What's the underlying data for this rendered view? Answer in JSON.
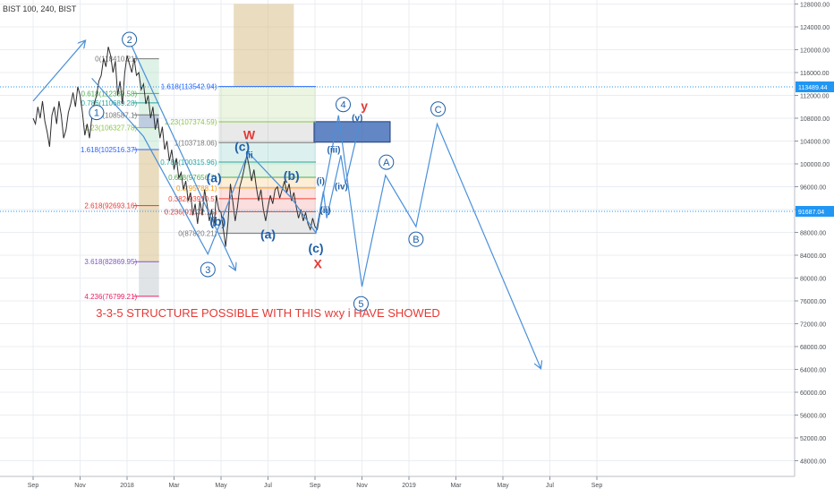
{
  "chart_data": {
    "type": "line",
    "title": "BIST 100, 240, BIST",
    "xlabel": "",
    "ylabel": "",
    "ylim": [
      45000,
      128000
    ],
    "grid": true,
    "x_ticks": [
      "Sep",
      "Nov",
      "2018",
      "Mar",
      "May",
      "Jul",
      "Sep",
      "Nov",
      "2019",
      "Mar",
      "May",
      "Jul",
      "Sep"
    ],
    "y_ticks": [
      "128000.00",
      "124000.00",
      "120000.00",
      "116000.00",
      "112000.00",
      "108000.00",
      "104000.00",
      "100000.00",
      "96000.00",
      "92000.00",
      "88000.00",
      "84000.00",
      "80000.00",
      "76000.00",
      "72000.00",
      "68000.00",
      "64000.00",
      "60000.00",
      "56000.00",
      "52000.00",
      "48000.00"
    ],
    "price_badges": [
      {
        "label": "113489.44",
        "value": 113489.44,
        "color": "#2196f3"
      },
      {
        "label": "91687.04",
        "value": 91687.04,
        "color": "#2196f3"
      }
    ],
    "series": [
      {
        "name": "",
        "color": "#2e2e2e",
        "points": [
          [
            0,
            108000
          ],
          [
            0.05,
            107000
          ],
          [
            0.1,
            110000
          ],
          [
            0.15,
            108000
          ],
          [
            0.2,
            111000
          ],
          [
            0.25,
            107500
          ],
          [
            0.3,
            105500
          ],
          [
            0.35,
            103000
          ],
          [
            0.4,
            108500
          ],
          [
            0.45,
            110000
          ],
          [
            0.5,
            107000
          ],
          [
            0.55,
            111000
          ],
          [
            0.6,
            108500
          ],
          [
            0.65,
            104500
          ],
          [
            0.7,
            106000
          ],
          [
            0.75,
            109000
          ],
          [
            0.8,
            110500
          ],
          [
            0.85,
            112500
          ],
          [
            0.9,
            110000
          ],
          [
            0.95,
            113500
          ],
          [
            1.0,
            112000
          ],
          [
            1.05,
            109000
          ],
          [
            1.1,
            105000
          ],
          [
            1.15,
            107000
          ],
          [
            1.2,
            104500
          ],
          [
            1.25,
            108000
          ],
          [
            1.3,
            110500
          ],
          [
            1.35,
            112000
          ],
          [
            1.4,
            114500
          ],
          [
            1.45,
            115500
          ],
          [
            1.5,
            118500
          ],
          [
            1.55,
            117000
          ],
          [
            1.6,
            120500
          ],
          [
            1.65,
            119000
          ],
          [
            1.7,
            116000
          ],
          [
            1.75,
            118000
          ],
          [
            1.8,
            112000
          ],
          [
            1.85,
            114500
          ],
          [
            1.9,
            110500
          ],
          [
            1.95,
            116000
          ],
          [
            2.0,
            119000
          ],
          [
            2.05,
            117500
          ],
          [
            2.1,
            116000
          ],
          [
            2.15,
            118500
          ],
          [
            2.2,
            115500
          ],
          [
            2.25,
            116000
          ],
          [
            2.3,
            113000
          ],
          [
            2.35,
            114000
          ],
          [
            2.4,
            110500
          ],
          [
            2.45,
            112000
          ],
          [
            2.5,
            108000
          ],
          [
            2.55,
            110000
          ],
          [
            2.6,
            106000
          ],
          [
            2.65,
            108000
          ],
          [
            2.7,
            104500
          ],
          [
            2.75,
            106500
          ],
          [
            2.8,
            102500
          ],
          [
            2.85,
            104000
          ],
          [
            2.9,
            100500
          ],
          [
            2.95,
            102500
          ],
          [
            3.0,
            99000
          ],
          [
            3.05,
            101000
          ],
          [
            3.1,
            97500
          ],
          [
            3.15,
            98500
          ],
          [
            3.2,
            95500
          ],
          [
            3.25,
            97000
          ],
          [
            3.3,
            93500
          ],
          [
            3.35,
            95000
          ],
          [
            3.4,
            91000
          ],
          [
            3.45,
            93000
          ],
          [
            3.5,
            89500
          ],
          [
            3.55,
            93500
          ],
          [
            3.6,
            91000
          ],
          [
            3.65,
            95500
          ],
          [
            3.7,
            93000
          ],
          [
            3.75,
            90000
          ],
          [
            3.8,
            92000
          ],
          [
            3.85,
            89000
          ],
          [
            3.9,
            94500
          ],
          [
            3.95,
            92000
          ],
          [
            4.0,
            91500
          ],
          [
            4.05,
            88500
          ],
          [
            4.1,
            85500
          ],
          [
            4.15,
            90000
          ],
          [
            4.2,
            96500
          ],
          [
            4.25,
            93500
          ],
          [
            4.3,
            90000
          ],
          [
            4.35,
            92500
          ],
          [
            4.4,
            96000
          ],
          [
            4.45,
            97500
          ],
          [
            4.5,
            99500
          ],
          [
            4.55,
            101500
          ],
          [
            4.6,
            99500
          ],
          [
            4.65,
            97000
          ],
          [
            4.7,
            99000
          ],
          [
            4.75,
            96000
          ],
          [
            4.8,
            93500
          ],
          [
            4.85,
            95500
          ],
          [
            4.9,
            92000
          ],
          [
            4.95,
            90000
          ],
          [
            5.0,
            92500
          ],
          [
            5.05,
            94500
          ],
          [
            5.1,
            93000
          ],
          [
            5.15,
            95500
          ],
          [
            5.2,
            96000
          ],
          [
            5.25,
            94000
          ],
          [
            5.3,
            95500
          ],
          [
            5.35,
            97000
          ],
          [
            5.4,
            95000
          ],
          [
            5.45,
            96500
          ],
          [
            5.5,
            93500
          ],
          [
            5.55,
            95000
          ],
          [
            5.6,
            92500
          ],
          [
            5.65,
            90500
          ],
          [
            5.7,
            92000
          ],
          [
            5.75,
            90000
          ],
          [
            5.8,
            91500
          ],
          [
            5.85,
            89500
          ],
          [
            5.9,
            88500
          ],
          [
            5.95,
            90500
          ],
          [
            6.0,
            89000
          ],
          [
            6.05,
            88500
          ],
          [
            6.1,
            91000
          ],
          [
            6.15,
            92500
          ]
        ]
      }
    ],
    "wave_paths": [
      {
        "name": "wave-main-path",
        "points": [
          [
            1.25,
            115000
          ],
          [
            2.35,
            104800
          ],
          [
            3.72,
            84200
          ],
          [
            4.58,
            102000
          ],
          [
            5.5,
            94000
          ],
          [
            6.02,
            87900
          ],
          [
            6.5,
            108500
          ],
          [
            7.0,
            78500
          ],
          [
            7.5,
            98000
          ],
          [
            8.15,
            89000
          ],
          [
            8.6,
            107000
          ],
          [
            10.8,
            64300
          ]
        ]
      },
      {
        "name": "wave-sub-path",
        "points": [
          [
            6.02,
            87900
          ],
          [
            6.18,
            95200
          ],
          [
            6.25,
            90500
          ],
          [
            6.55,
            101500
          ],
          [
            6.65,
            96500
          ],
          [
            6.95,
            107000
          ]
        ]
      }
    ],
    "arrow_segments": [
      {
        "name": "arrow-sep-nov",
        "from": [
          0,
          111000
        ],
        "to": [
          1.1,
          121500
        ]
      },
      {
        "name": "arrow-decline",
        "from": [
          2.05,
          121500
        ],
        "to": [
          4.3,
          81500
        ]
      }
    ],
    "fib_left": {
      "levels": [
        {
          "label": "0(118410.21)",
          "value": 118410.21,
          "color": "#777777"
        },
        {
          "label": "0.618(112339.58)",
          "value": 112339.58,
          "color": "#4caf50"
        },
        {
          "label": "0.786(110689.28)",
          "value": 110689.28,
          "color": "#26a69a"
        },
        {
          "label": "1(108587.1)",
          "value": 108587.1,
          "color": "#777777"
        },
        {
          "label": "1.23(106327.78)",
          "value": 106327.78,
          "color": "#8bc34a"
        },
        {
          "label": "1.618(102516.37)",
          "value": 102516.37,
          "color": "#2962ff"
        },
        {
          "label": "2.618(92693.16)",
          "value": 92693.16,
          "color": "#e53935"
        },
        {
          "label": "3.618(82869.95)",
          "value": 82869.95,
          "color": "#7e57c2"
        },
        {
          "label": "4.236(76799.21)",
          "value": 76799.21,
          "color": "#e91e63"
        }
      ]
    },
    "fib_right": {
      "levels": [
        {
          "label": "1.618(113542.94)",
          "value": 113542.94,
          "color": "#2962ff"
        },
        {
          "label": "1.23(107374.59)",
          "value": 107374.59,
          "color": "#8bc34a"
        },
        {
          "label": "1(103718.06)",
          "value": 103718.06,
          "color": "#777777"
        },
        {
          "label": "0.786(100315.96)",
          "value": 100315.96,
          "color": "#26a69a"
        },
        {
          "label": "0.618(97656.7)",
          "value": 97656.7,
          "color": "#4caf50"
        },
        {
          "label": "0.5(95788.1)",
          "value": 95788.1,
          "color": "#ff9800"
        },
        {
          "label": "0.382(93910.5)",
          "value": 93910.5,
          "color": "#f44336"
        },
        {
          "label": "0.236(91632.15)",
          "value": 91632.15,
          "color": "#e53935"
        },
        {
          "label": "0(87820.21)",
          "value": 87820.21,
          "color": "#777777"
        }
      ]
    },
    "wave_labels": [
      {
        "text": "1",
        "x": 1.35,
        "y": 109000,
        "circled": true,
        "color": "#1f5fa8"
      },
      {
        "text": "2",
        "x": 2.05,
        "y": 121800,
        "circled": true,
        "color": "#1f5fa8"
      },
      {
        "text": "3",
        "x": 3.72,
        "y": 81500,
        "circled": true,
        "color": "#1f5fa8"
      },
      {
        "text": "4",
        "x": 6.6,
        "y": 110400,
        "circled": true,
        "color": "#1f5fa8"
      },
      {
        "text": "5",
        "x": 6.98,
        "y": 75500,
        "circled": true,
        "color": "#1f5fa8"
      },
      {
        "text": "A",
        "x": 7.52,
        "y": 100300,
        "circled": true,
        "color": "#1f5fa8"
      },
      {
        "text": "B",
        "x": 8.15,
        "y": 86800,
        "circled": true,
        "color": "#1f5fa8"
      },
      {
        "text": "C",
        "x": 8.62,
        "y": 109600,
        "circled": true,
        "color": "#1f5fa8"
      },
      {
        "text": "(a)",
        "x": 3.85,
        "y": 96800,
        "circled": false,
        "color": "#1f5fa8"
      },
      {
        "text": "(b)",
        "x": 3.93,
        "y": 89200,
        "circled": false,
        "color": "#1f5fa8"
      },
      {
        "text": "(c)",
        "x": 4.45,
        "y": 102300,
        "circled": false,
        "color": "#1f5fa8"
      },
      {
        "text": "(a)",
        "x": 5.0,
        "y": 86900,
        "circled": false,
        "color": "#1f5fa8"
      },
      {
        "text": "(b)",
        "x": 5.5,
        "y": 97200,
        "circled": false,
        "color": "#1f5fa8"
      },
      {
        "text": "(c)",
        "x": 6.02,
        "y": 84500,
        "circled": false,
        "color": "#1f5fa8"
      },
      {
        "text": "iii",
        "x": 4.6,
        "y": 101000,
        "circled": false,
        "color": "#1f5fa8"
      },
      {
        "text": "(i)",
        "x": 6.12,
        "y": 96500,
        "circled": false,
        "color": "#1f5fa8"
      },
      {
        "text": "(ii)",
        "x": 6.22,
        "y": 91400,
        "circled": false,
        "color": "#1f5fa8"
      },
      {
        "text": "(iii)",
        "x": 6.4,
        "y": 102000,
        "circled": false,
        "color": "#1f5fa8"
      },
      {
        "text": "(iv)",
        "x": 6.56,
        "y": 95500,
        "circled": false,
        "color": "#1f5fa8"
      },
      {
        "text": "(v)",
        "x": 6.9,
        "y": 107500,
        "circled": false,
        "color": "#1f5fa8"
      },
      {
        "text": "W",
        "x": 4.6,
        "y": 104300,
        "circled": false,
        "color": "#e53935"
      },
      {
        "text": "X",
        "x": 6.06,
        "y": 81700,
        "circled": false,
        "color": "#e53935"
      },
      {
        "text": "y",
        "x": 7.05,
        "y": 109400,
        "circled": false,
        "color": "#e53935"
      }
    ],
    "annotations": [
      {
        "text": "3-3-5 STRUCTURE POSSIBLE WITH THIS wxy i HAVE SHOWED",
        "x": 5.0,
        "y": 73200,
        "color": "#e53935"
      }
    ],
    "colors": {
      "grid": "#e9edf2",
      "price_line": "#2e2e2e",
      "wave": "#4a90d9",
      "fib_zone_tan": "#d8bf8a",
      "fib_zone_blue": "#2f5fb0"
    }
  }
}
